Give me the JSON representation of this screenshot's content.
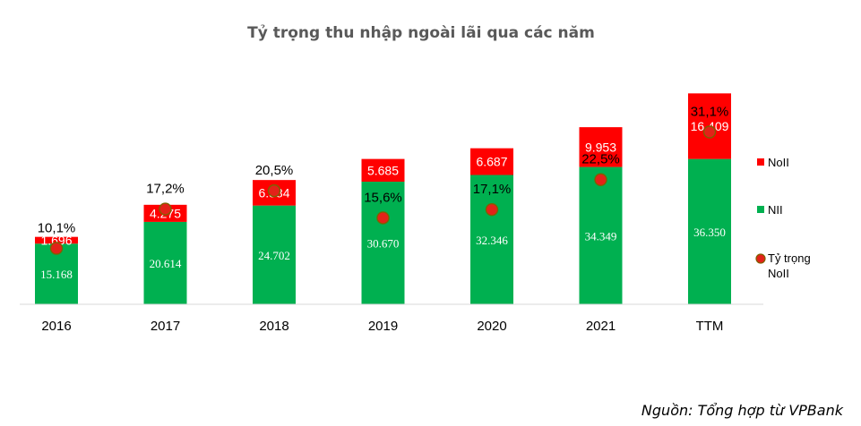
{
  "chart_data": {
    "type": "bar",
    "title": "Tỷ trọng thu nhập ngoài lãi qua các năm",
    "categories": [
      "2016",
      "2017",
      "2018",
      "2019",
      "2020",
      "2021",
      "TTM"
    ],
    "series": [
      {
        "name": "NII",
        "color": "#00b050",
        "values": [
          15168,
          20614,
          24702,
          30670,
          32346,
          34349,
          36350
        ],
        "labels": [
          "15.168",
          "20.614",
          "24.702",
          "30.670",
          "32.346",
          "34.349",
          "36.350"
        ]
      },
      {
        "name": "NoII",
        "color": "#ff0000",
        "values": [
          1696,
          4275,
          6384,
          5685,
          6687,
          9953,
          16409
        ],
        "labels": [
          "1.696",
          "4.275",
          "6.384",
          "5.685",
          "6.687",
          "9.953",
          "16.409"
        ]
      }
    ],
    "ratio": {
      "name_line1": "Tỷ trọng",
      "name_line2": "NoII",
      "marker_color": "#e32219",
      "marker_edge": "#7f6000",
      "values": [
        10.1,
        17.2,
        20.5,
        15.6,
        17.1,
        22.5,
        31.1
      ],
      "labels": [
        "10,1%",
        "17,2%",
        "20,5%",
        "15,6%",
        "17,1%",
        "22,5%",
        "31,1%"
      ]
    },
    "legend": [
      "NoII",
      "NII",
      "Tỷ trọng NoII"
    ],
    "legend_position": "right",
    "xlabel": "",
    "ylabel": "",
    "ylim": [
      0,
      60000
    ],
    "ratio_ylim": [
      0,
      43.3
    ],
    "grid": false
  },
  "source": "Nguồn: Tổng hợp từ VPBank"
}
